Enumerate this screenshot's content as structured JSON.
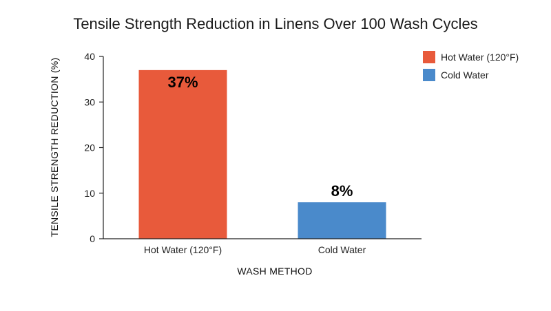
{
  "chart_data": {
    "type": "bar",
    "title": "Tensile Strength Reduction in Linens Over 100 Wash Cycles",
    "xlabel": "WASH METHOD",
    "ylabel": "TENSILE STRENGTH REDUCTION (%)",
    "categories": [
      "Hot Water (120°F)",
      "Cold Water"
    ],
    "values": [
      37,
      8
    ],
    "data_labels": [
      "37%",
      "8%"
    ],
    "colors": [
      "#e85a3b",
      "#4a8acb"
    ],
    "ylim": [
      0,
      40
    ],
    "yticks": [
      0,
      10,
      20,
      30,
      40
    ],
    "ytick_labels": [
      "0",
      "10",
      "20",
      "30",
      "40"
    ],
    "grid": false,
    "legend": {
      "position": "top-right",
      "entries": [
        {
          "label": "Hot Water (120°F)",
          "color": "#e85a3b"
        },
        {
          "label": "Cold Water",
          "color": "#4a8acb"
        }
      ]
    }
  }
}
